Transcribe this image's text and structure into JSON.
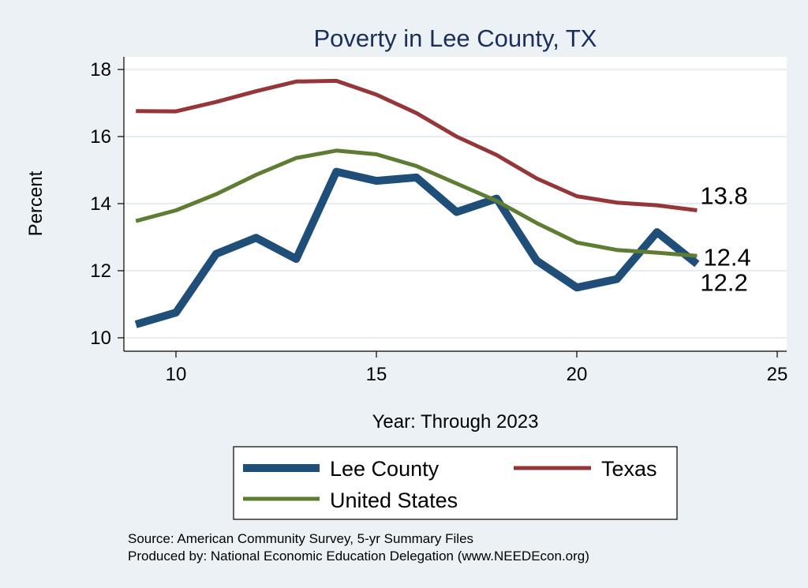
{
  "chart_data": {
    "type": "line",
    "title": "Poverty in Lee County, TX",
    "xlabel": "Year: Through 2023",
    "ylabel": "Percent",
    "xlim": [
      9,
      25
    ],
    "ylim": [
      10,
      18
    ],
    "xticks": [
      10,
      15,
      20,
      25
    ],
    "yticks": [
      10,
      12,
      14,
      16,
      18
    ],
    "grid": "horizontal",
    "legend_position": "bottom",
    "x": [
      9,
      10,
      11,
      12,
      13,
      14,
      15,
      16,
      17,
      18,
      19,
      20,
      21,
      22,
      23
    ],
    "series": [
      {
        "name": "Lee County",
        "color": "#1f4e79",
        "values": [
          10.4,
          10.75,
          12.5,
          12.98,
          12.35,
          14.95,
          14.68,
          14.78,
          13.75,
          14.15,
          12.3,
          11.5,
          11.75,
          13.15,
          12.2
        ],
        "end_label": "12.2"
      },
      {
        "name": "Texas",
        "color": "#953738",
        "values": [
          16.76,
          16.75,
          17.03,
          17.35,
          17.64,
          17.66,
          17.25,
          16.7,
          16.0,
          15.45,
          14.75,
          14.22,
          14.03,
          13.95,
          13.8
        ],
        "end_label": "13.8"
      },
      {
        "name": "United States",
        "color": "#5e7d32",
        "values": [
          13.48,
          13.8,
          14.28,
          14.86,
          15.36,
          15.58,
          15.47,
          15.12,
          14.6,
          14.08,
          13.42,
          12.84,
          12.62,
          12.54,
          12.44
        ],
        "end_label": "12.4"
      }
    ]
  },
  "source_text": "Source: American Community Survey, 5-yr Summary Files",
  "produced_text": "Produced by: National Economic Education Delegation (www.NEEDEcon.org)"
}
